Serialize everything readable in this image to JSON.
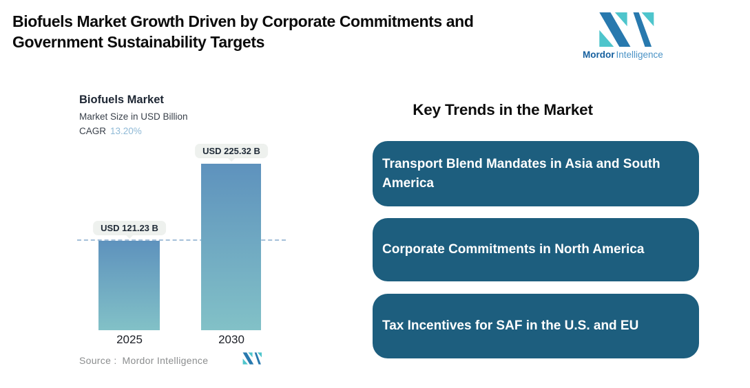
{
  "header": {
    "title": "Biofuels Market Growth Driven by Corporate Commitments and Government Sustainability Targets",
    "brand": {
      "name_bold": "Mordor",
      "name_light": "Intelligence"
    }
  },
  "chart": {
    "title": "Biofuels Market",
    "subtitle": "Market Size in USD Billion",
    "cagr_label": "CAGR",
    "cagr_value": "13.20%",
    "source_label": "Source :",
    "source_value": "Mordor Intelligence"
  },
  "chart_data": {
    "type": "bar",
    "title": "Biofuels Market",
    "subtitle": "Market Size in USD Billion",
    "cagr": "13.20%",
    "categories": [
      "2025",
      "2030"
    ],
    "values": [
      121.23,
      225.32
    ],
    "value_labels": [
      "USD 121.23 B",
      "USD 225.32 B"
    ],
    "ylim": [
      0,
      225.32
    ],
    "reference_line": 121.23,
    "grid": "off",
    "legend": "none",
    "bar_gradient_top_to_bottom": [
      "#5e92bd",
      "#82c1c7"
    ]
  },
  "trends": {
    "heading": "Key Trends in the Market",
    "items": [
      "Transport Blend Mandates in Asia and South America",
      "Corporate Commitments in North America",
      "Tax Incentives for SAF in the U.S. and EU"
    ]
  },
  "colors": {
    "accent_teal": "#4ec5cc",
    "brand_dark_blue": "#2879ae",
    "brand_text_dark": "#155f9e",
    "brand_text_light": "#4b93c6",
    "card_bg": "#1d5e7e",
    "bar_top": "#5e92bd",
    "bar_bottom": "#82c1c7",
    "cagr_value": "#8fb9d6",
    "dashed_line": "#a4bfd9",
    "tooltip_bg": "#eef1ee"
  }
}
